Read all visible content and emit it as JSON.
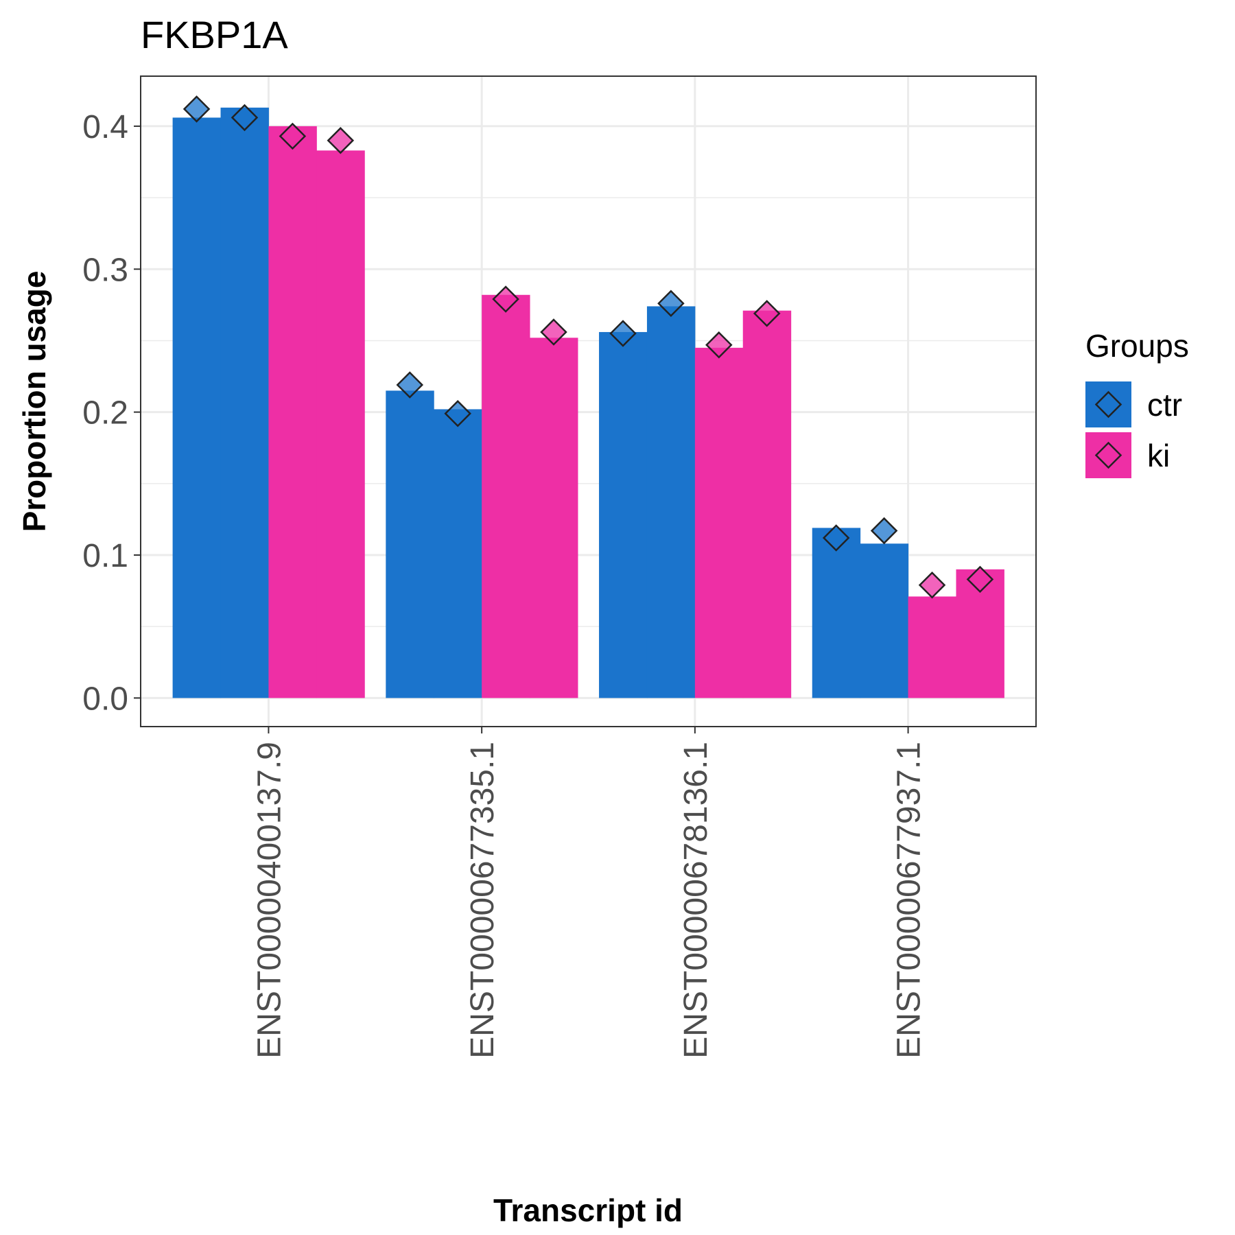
{
  "chart_data": {
    "type": "bar",
    "title": "FKBP1A",
    "xlabel": "Transcript id",
    "ylabel": "Proportion usage",
    "categories": [
      "ENST00000400137.9",
      "ENST00000677335.1",
      "ENST00000678136.1",
      "ENST00000677937.1"
    ],
    "ylim": [
      -0.02,
      0.435
    ],
    "y_ticks": [
      0.0,
      0.1,
      0.2,
      0.3,
      0.4
    ],
    "y_tick_labels": [
      "0.0",
      "0.1",
      "0.2",
      "0.3",
      "0.4"
    ],
    "grid": true,
    "legend": {
      "title": "Groups",
      "position": "right"
    },
    "series": [
      {
        "name": "ctr",
        "color": "#1b74cc",
        "samples": [
          {
            "bar": 0.406,
            "point": 0.412
          },
          {
            "bar": 0.413,
            "point": 0.406
          },
          {
            "bar": 0.215,
            "point": 0.219
          },
          {
            "bar": 0.202,
            "point": 0.199
          },
          {
            "bar": 0.256,
            "point": 0.255
          },
          {
            "bar": 0.274,
            "point": 0.276
          },
          {
            "bar": 0.119,
            "point": 0.112
          },
          {
            "bar": 0.108,
            "point": 0.117
          }
        ]
      },
      {
        "name": "ki",
        "color": "#ee2fa5",
        "samples": [
          {
            "bar": 0.4,
            "point": 0.393
          },
          {
            "bar": 0.383,
            "point": 0.39
          },
          {
            "bar": 0.282,
            "point": 0.279
          },
          {
            "bar": 0.252,
            "point": 0.256
          },
          {
            "bar": 0.245,
            "point": 0.247
          },
          {
            "bar": 0.271,
            "point": 0.269
          },
          {
            "bar": 0.071,
            "point": 0.079
          },
          {
            "bar": 0.09,
            "point": 0.083
          }
        ]
      }
    ]
  }
}
